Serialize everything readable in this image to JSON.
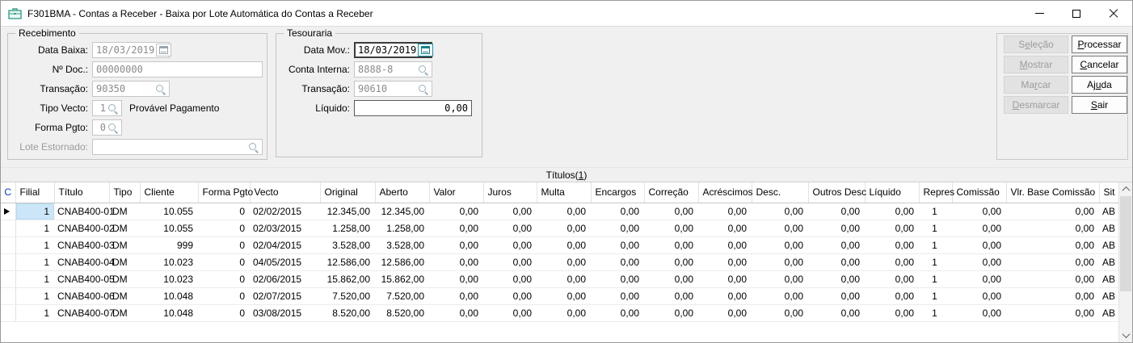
{
  "window": {
    "title": "F301BMA - Contas a Receber - Baixa por Lote Automática do Contas a Receber"
  },
  "icons": {
    "app": "briefcase-icon",
    "date_fields": "calendar-icon",
    "lookup_fields": "magnifier-icon",
    "current_row": "right-triangle-marker",
    "scrollbar": [
      "chevron-up-icon",
      "chevron-down-icon"
    ],
    "window_controls": [
      "minimize-icon",
      "maximize-icon",
      "close-icon"
    ]
  },
  "colors": {
    "accent_teal": "#2f9b8e",
    "calendar_teal": "#11808f",
    "selection_blue": "#cbe6f8",
    "header_link_blue": "#0040c0",
    "disabled_text": "#8b8b8b",
    "panel_gray": "#f0f0f0"
  },
  "recebimento": {
    "legend": "Recebimento",
    "fields": {
      "data_baixa": {
        "label": "Data Baixa:",
        "value": "18/03/2019",
        "enabled": false
      },
      "no_doc": {
        "label": "Nº Doc.:",
        "value": "00000000",
        "enabled": false
      },
      "transacao": {
        "label": "Transação:",
        "value": "90350",
        "enabled": false
      },
      "tipo_vecto": {
        "label": "Tipo Vecto:",
        "value": "1",
        "description": "Provável Pagamento",
        "enabled": false
      },
      "forma_pgto": {
        "label": "Forma Pgto:",
        "value": "0",
        "enabled": false
      },
      "lote_estornado": {
        "label": "Lote Estornado:",
        "value": "",
        "enabled": false
      }
    }
  },
  "tesouraria": {
    "legend": "Tesouraria",
    "fields": {
      "data_mov": {
        "label": "Data Mov.:",
        "value": "18/03/2019",
        "enabled": true,
        "focused": true
      },
      "conta_interna": {
        "label": "Conta Interna:",
        "value": "8888-8",
        "enabled": false
      },
      "transacao": {
        "label": "Transação:",
        "value": "90610",
        "enabled": false
      },
      "liquido": {
        "label": "Líquido:",
        "value": "0,00",
        "enabled": true
      }
    }
  },
  "buttons": {
    "selecao": {
      "pre": "S",
      "key": "e",
      "post": "leção",
      "enabled": false
    },
    "mostrar": {
      "pre": "",
      "key": "M",
      "post": "ostrar",
      "enabled": false
    },
    "marcar": {
      "pre": "Ma",
      "key": "r",
      "post": "car",
      "enabled": false
    },
    "desmarcar": {
      "pre": "",
      "key": "D",
      "post": "esmarcar",
      "enabled": false
    },
    "processar": {
      "pre": "",
      "key": "P",
      "post": "rocessar",
      "enabled": true
    },
    "cancelar": {
      "pre": "",
      "key": "C",
      "post": "ancelar",
      "enabled": true
    },
    "ajuda": {
      "pre": "Aj",
      "key": "u",
      "post": "da",
      "enabled": true
    },
    "sair": {
      "pre": "",
      "key": "S",
      "post": "air",
      "enabled": true
    }
  },
  "tab": {
    "pre": "Títulos(",
    "key": "1",
    "post": ")"
  },
  "table": {
    "columns": [
      "C",
      "Filial",
      "Título",
      "Tipo",
      "Cliente",
      "Forma Pgto",
      "Vecto",
      "Original",
      "Aberto",
      "Valor",
      "Juros",
      "Multa",
      "Encargos",
      "Correção",
      "Acréscimos",
      "Desc.",
      "Outros Desc",
      "Líquido",
      "Repres",
      "Comissão",
      "Vlr. Base Comissão",
      "Sit"
    ],
    "rows": [
      {
        "current": true,
        "cells": [
          "",
          "1",
          "CNAB400-01",
          "DM",
          "10.055",
          "0",
          "02/02/2015",
          "12.345,00",
          "12.345,00",
          "0,00",
          "0,00",
          "0,00",
          "0,00",
          "0,00",
          "0,00",
          "0,00",
          "0,00",
          "0,00",
          "1",
          "0,00",
          "0,00",
          "AB"
        ]
      },
      {
        "current": false,
        "cells": [
          "",
          "1",
          "CNAB400-02",
          "DM",
          "10.055",
          "0",
          "02/03/2015",
          "1.258,00",
          "1.258,00",
          "0,00",
          "0,00",
          "0,00",
          "0,00",
          "0,00",
          "0,00",
          "0,00",
          "0,00",
          "0,00",
          "1",
          "0,00",
          "0,00",
          "AB"
        ]
      },
      {
        "current": false,
        "cells": [
          "",
          "1",
          "CNAB400-03",
          "DM",
          "999",
          "0",
          "02/04/2015",
          "3.528,00",
          "3.528,00",
          "0,00",
          "0,00",
          "0,00",
          "0,00",
          "0,00",
          "0,00",
          "0,00",
          "0,00",
          "0,00",
          "1",
          "0,00",
          "0,00",
          "AB"
        ]
      },
      {
        "current": false,
        "cells": [
          "",
          "1",
          "CNAB400-04",
          "DM",
          "10.023",
          "0",
          "04/05/2015",
          "12.586,00",
          "12.586,00",
          "0,00",
          "0,00",
          "0,00",
          "0,00",
          "0,00",
          "0,00",
          "0,00",
          "0,00",
          "0,00",
          "1",
          "0,00",
          "0,00",
          "AB"
        ]
      },
      {
        "current": false,
        "cells": [
          "",
          "1",
          "CNAB400-05",
          "DM",
          "10.023",
          "0",
          "02/06/2015",
          "15.862,00",
          "15.862,00",
          "0,00",
          "0,00",
          "0,00",
          "0,00",
          "0,00",
          "0,00",
          "0,00",
          "0,00",
          "0,00",
          "1",
          "0,00",
          "0,00",
          "AB"
        ]
      },
      {
        "current": false,
        "cells": [
          "",
          "1",
          "CNAB400-06",
          "DM",
          "10.048",
          "0",
          "02/07/2015",
          "7.520,00",
          "7.520,00",
          "0,00",
          "0,00",
          "0,00",
          "0,00",
          "0,00",
          "0,00",
          "0,00",
          "0,00",
          "0,00",
          "1",
          "0,00",
          "0,00",
          "AB"
        ]
      },
      {
        "current": false,
        "cells": [
          "",
          "1",
          "CNAB400-07",
          "DM",
          "10.048",
          "0",
          "03/08/2015",
          "8.520,00",
          "8.520,00",
          "0,00",
          "0,00",
          "0,00",
          "0,00",
          "0,00",
          "0,00",
          "0,00",
          "0,00",
          "0,00",
          "1",
          "0,00",
          "0,00",
          "AB"
        ]
      }
    ]
  }
}
